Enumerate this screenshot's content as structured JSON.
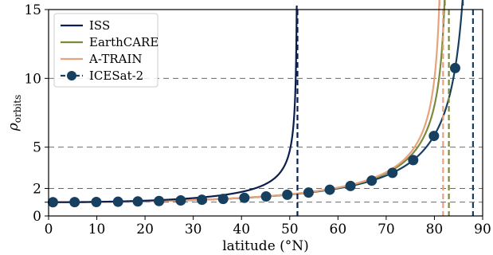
{
  "chart_data": {
    "type": "line",
    "xlabel": "latitude (°N)",
    "ylabel_main": "ρ",
    "ylabel_sub": "orbits",
    "xlim": [
      0,
      90
    ],
    "ylim": [
      0,
      15
    ],
    "xticks": [
      0,
      10,
      20,
      30,
      40,
      50,
      60,
      70,
      80,
      90
    ],
    "yticks": [
      0,
      1,
      2,
      5,
      10,
      15
    ],
    "ytick_labels": [
      "0",
      "",
      "2",
      "5",
      "10",
      "15"
    ],
    "hlines": [
      1,
      2,
      5,
      10
    ],
    "legend_position": "top-left",
    "series": [
      {
        "name": "ISS",
        "inclination": 51.6,
        "color": "#0a1f4f",
        "marker": "none"
      },
      {
        "name": "EarthCARE",
        "inclination": 83.0,
        "color": "#7b8a3b",
        "marker": "none"
      },
      {
        "name": "A-TRAIN",
        "inclination": 81.8,
        "color": "#e8a27d",
        "marker": "none"
      },
      {
        "name": "ICESat-2",
        "inclination": 88.0,
        "color": "#173f5f",
        "marker": "circle",
        "marker_x": [
          0.9,
          5.4,
          9.9,
          14.4,
          18.5,
          22.9,
          27.4,
          31.8,
          36.2,
          40.6,
          45.1,
          49.5,
          53.9,
          58.3,
          62.6,
          67.0,
          71.3,
          75.6,
          79.9,
          84.3
        ]
      }
    ]
  }
}
